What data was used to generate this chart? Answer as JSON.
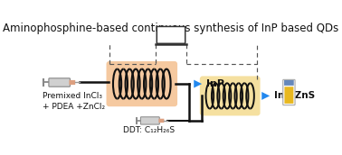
{
  "title": "Aminophosphine-based continuous synthesis of InP based QDs",
  "title_fontsize": 8.5,
  "bg_color": "#ffffff",
  "coil1_bg": "#f5c9a0",
  "coil2_bg": "#f5e0a0",
  "coil_line_color": "#111111",
  "arrow_color": "#2288ee",
  "line_color": "#111111",
  "dashed_color": "#555555",
  "label_inp": "InP",
  "label_inpzns": "InP/ZnS",
  "label_syringe1": "Premixed InCl₃\n+ PDEA +ZnCl₂",
  "label_syringe2": "DDT: C₁₂H₂₆S",
  "text_fontsize": 6.5
}
